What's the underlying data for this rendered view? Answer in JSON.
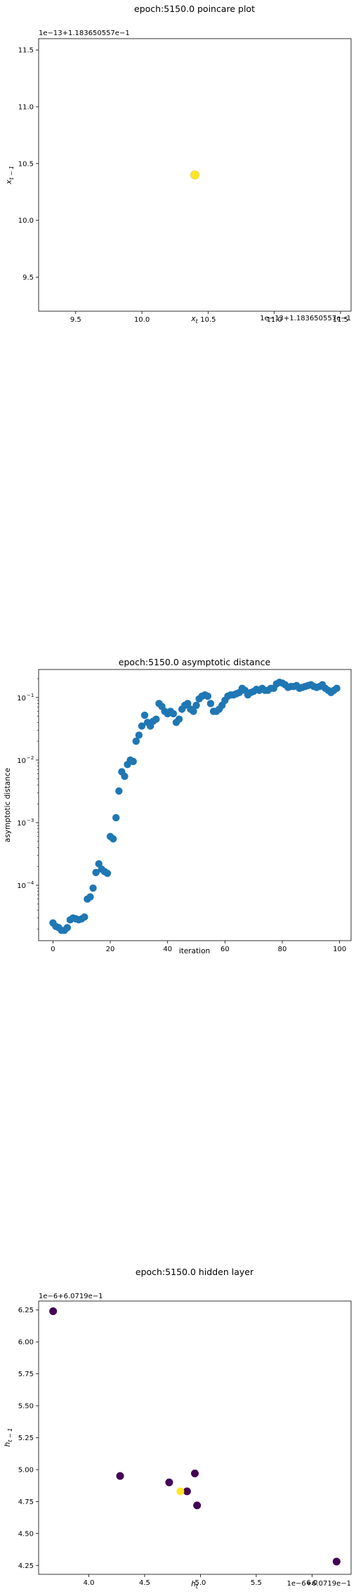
{
  "chart_data": [
    {
      "type": "scatter",
      "title": "epoch:5150.0 poincare plot",
      "xlabel": "x_t",
      "ylabel": "x_{t-1}",
      "x_offset_text": "1e−13+1.183650557e−1",
      "y_offset_text": "1e−13+1.183650557e−1",
      "xlim": [
        9.22,
        11.58
      ],
      "ylim": [
        9.2,
        11.6
      ],
      "xticks": [
        "9.5",
        "10.0",
        "10.5",
        "11.0",
        "11.5"
      ],
      "yticks": [
        "9.5",
        "10.0",
        "10.5",
        "11.0",
        "11.5"
      ],
      "xtick_values": [
        9.5,
        10.0,
        10.5,
        11.0,
        11.5
      ],
      "ytick_values": [
        9.5,
        10.0,
        10.5,
        11.0,
        11.5
      ],
      "grid": false,
      "colors": {
        "points": "#fde725"
      },
      "points": [
        {
          "x": 10.4,
          "y": 10.4,
          "color": "#fde725"
        }
      ]
    },
    {
      "type": "scatter",
      "title": "epoch:5150.0 asymptotic distance",
      "xlabel": "iteration",
      "ylabel": "asymptotic distance",
      "yscale": "log",
      "xlim": [
        -5,
        104
      ],
      "ylim": [
        1.3e-05,
        0.28
      ],
      "xticks": [
        "0",
        "20",
        "40",
        "60",
        "80",
        "100"
      ],
      "xtick_values": [
        0,
        20,
        40,
        60,
        80,
        100
      ],
      "yticks": [
        "10",
        "10",
        "10",
        "10"
      ],
      "ytick_exponents": [
        "−4",
        "−3",
        "−2",
        "−1"
      ],
      "ytick_values": [
        0.0001,
        0.001,
        0.01,
        0.1
      ],
      "grid": false,
      "colors": {
        "points": "#1f77b4"
      },
      "x": [
        0,
        1,
        2,
        3,
        4,
        5,
        6,
        7,
        8,
        9,
        10,
        11,
        12,
        13,
        14,
        15,
        16,
        17,
        18,
        19,
        20,
        21,
        22,
        23,
        24,
        25,
        26,
        27,
        28,
        29,
        30,
        31,
        32,
        33,
        34,
        35,
        36,
        37,
        38,
        39,
        40,
        41,
        42,
        43,
        44,
        45,
        46,
        47,
        48,
        49,
        50,
        51,
        52,
        53,
        54,
        55,
        56,
        57,
        58,
        59,
        60,
        61,
        62,
        63,
        64,
        65,
        66,
        67,
        68,
        69,
        70,
        71,
        72,
        73,
        74,
        75,
        76,
        77,
        78,
        79,
        80,
        81,
        82,
        83,
        84,
        85,
        86,
        87,
        88,
        89,
        90,
        91,
        92,
        93,
        94,
        95,
        96,
        97,
        98,
        99
      ],
      "y": [
        2.5e-05,
        2.2e-05,
        2.1e-05,
        1.9e-05,
        1.9e-05,
        2.1e-05,
        2.8e-05,
        3e-05,
        2.9e-05,
        2.8e-05,
        2.9e-05,
        3.1e-05,
        6e-05,
        6.5e-05,
        9e-05,
        0.00016,
        0.00022,
        0.00018,
        0.000165,
        0.000155,
        0.0006,
        0.00055,
        0.0012,
        0.0032,
        0.0065,
        0.0055,
        0.0085,
        0.01,
        0.0095,
        0.02,
        0.025,
        0.035,
        0.052,
        0.04,
        0.035,
        0.042,
        0.045,
        0.08,
        0.072,
        0.06,
        0.055,
        0.06,
        0.055,
        0.04,
        0.045,
        0.065,
        0.075,
        0.08,
        0.065,
        0.06,
        0.075,
        0.095,
        0.105,
        0.11,
        0.105,
        0.08,
        0.06,
        0.06,
        0.065,
        0.075,
        0.09,
        0.105,
        0.11,
        0.11,
        0.115,
        0.12,
        0.14,
        0.13,
        0.11,
        0.12,
        0.125,
        0.135,
        0.13,
        0.14,
        0.13,
        0.13,
        0.14,
        0.14,
        0.165,
        0.175,
        0.17,
        0.16,
        0.145,
        0.15,
        0.15,
        0.155,
        0.14,
        0.145,
        0.15,
        0.155,
        0.16,
        0.15,
        0.145,
        0.15,
        0.16,
        0.14,
        0.13,
        0.12,
        0.13,
        0.14
      ]
    },
    {
      "type": "scatter",
      "title": "epoch:5150.0 hidden layer",
      "xlabel": "h_t",
      "ylabel": "h_{t-1}",
      "x_offset_text": "1e−6+6.0719e−1",
      "y_offset_text": "1e−6+6.0719e−1",
      "xlim": [
        3.55,
        6.35
      ],
      "ylim": [
        4.18,
        6.32
      ],
      "xticks": [
        "4.0",
        "4.5",
        "5.0",
        "5.5",
        "6.0"
      ],
      "xtick_values": [
        4.0,
        4.5,
        5.0,
        5.5,
        6.0
      ],
      "yticks": [
        "4.25",
        "4.50",
        "4.75",
        "5.00",
        "5.25",
        "5.50",
        "5.75",
        "6.00",
        "6.25"
      ],
      "ytick_values": [
        4.25,
        4.5,
        4.75,
        5.0,
        5.25,
        5.5,
        5.75,
        6.0,
        6.25
      ],
      "grid": false,
      "colors": {
        "dark": "#440154",
        "bright": "#fde725",
        "mid": "#21918c"
      },
      "points": [
        {
          "x": 3.68,
          "y": 6.24,
          "color": "#440154"
        },
        {
          "x": 4.28,
          "y": 4.95,
          "color": "#440154"
        },
        {
          "x": 4.72,
          "y": 4.9,
          "color": "#440154"
        },
        {
          "x": 4.88,
          "y": 4.83,
          "color": "#440154"
        },
        {
          "x": 4.95,
          "y": 4.97,
          "color": "#440154"
        },
        {
          "x": 4.97,
          "y": 4.72,
          "color": "#440154"
        },
        {
          "x": 6.22,
          "y": 4.28,
          "color": "#440154"
        },
        {
          "x": 4.82,
          "y": 4.83,
          "color": "#fde725"
        }
      ]
    }
  ]
}
